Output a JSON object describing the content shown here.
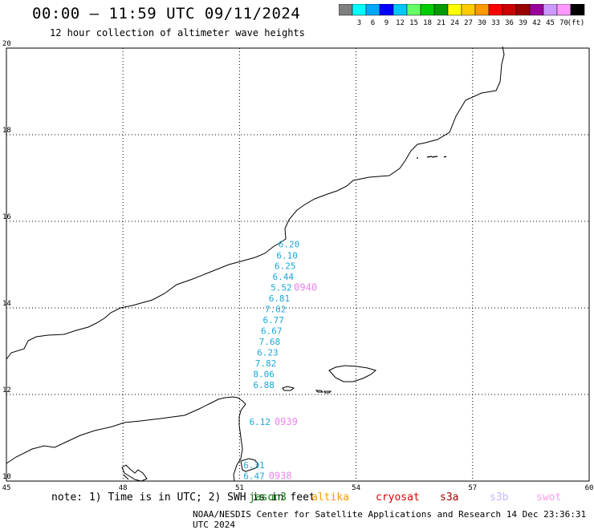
{
  "header": {
    "title": "00:00 – 11:59 UTC 09/11/2024",
    "subtitle": "12 hour collection of altimeter wave heights"
  },
  "colorbar": {
    "colors": [
      "#7f7f7f",
      "#00ffff",
      "#00a8ff",
      "#0000ff",
      "#00c8ff",
      "#66ff66",
      "#00cc00",
      "#009900",
      "#ffff00",
      "#ffcc00",
      "#ff9900",
      "#ff0000",
      "#cc0000",
      "#990000",
      "#990099",
      "#cc99ff",
      "#ff99ff",
      "#000000"
    ],
    "labels": [
      "3",
      "6",
      "9",
      "12",
      "15",
      "18",
      "21",
      "24",
      "27",
      "30",
      "33",
      "36",
      "39",
      "42",
      "45",
      "70"
    ],
    "unit": "(ft)"
  },
  "map": {
    "lon_ticks": [
      "45",
      "48",
      "51",
      "54",
      "57",
      "60"
    ],
    "lat_ticks": [
      "10",
      "12",
      "14",
      "16",
      "18",
      "20"
    ],
    "swh_color": "#1aa7d8",
    "time_color": "#ee82ee",
    "swh_labels": [
      {
        "text": "6.20",
        "lon": 52.0,
        "lat": 15.4
      },
      {
        "text": "6.10",
        "lon": 51.95,
        "lat": 15.14
      },
      {
        "text": "6.25",
        "lon": 51.9,
        "lat": 14.9
      },
      {
        "text": "6.44",
        "lon": 51.85,
        "lat": 14.65
      },
      {
        "text": "5.52",
        "lon": 51.8,
        "lat": 14.4
      },
      {
        "text": "6.81",
        "lon": 51.75,
        "lat": 14.15
      },
      {
        "text": "7.62",
        "lon": 51.65,
        "lat": 13.9
      },
      {
        "text": "6.77",
        "lon": 51.6,
        "lat": 13.65
      },
      {
        "text": "6.67",
        "lon": 51.55,
        "lat": 13.4
      },
      {
        "text": "7.68",
        "lon": 51.5,
        "lat": 13.15
      },
      {
        "text": "6.23",
        "lon": 51.45,
        "lat": 12.9
      },
      {
        "text": "7.82",
        "lon": 51.4,
        "lat": 12.65
      },
      {
        "text": "8.06",
        "lon": 51.35,
        "lat": 12.4
      },
      {
        "text": "6.88",
        "lon": 51.35,
        "lat": 12.15
      },
      {
        "text": "6.12",
        "lon": 51.25,
        "lat": 11.3
      },
      {
        "text": "6.31",
        "lon": 51.1,
        "lat": 10.3
      },
      {
        "text": "6.47",
        "lon": 51.1,
        "lat": 10.05
      }
    ],
    "time_labels": [
      {
        "text": "0940",
        "lon": 52.4,
        "lat": 14.4
      },
      {
        "text": "0939",
        "lon": 51.9,
        "lat": 11.3
      },
      {
        "text": "0938",
        "lon": 51.75,
        "lat": 10.05
      }
    ]
  },
  "footer": {
    "note": "note: 1) Time is in UTC; 2) SWH is in feet",
    "credit": "NOAA/NESDIS Center for Satellite Applications and Research   14 Dec 23:36:31 UTC 2024",
    "satellites": [
      {
        "name": "jason3",
        "color": "#0a7a0a"
      },
      {
        "name": "altika",
        "color": "#ff9900"
      },
      {
        "name": "cryosat",
        "color": "#e00000"
      },
      {
        "name": "s3a",
        "color": "#a00000"
      },
      {
        "name": "s3b",
        "color": "#c8b4ff"
      },
      {
        "name": "swot",
        "color": "#ff99ee"
      }
    ]
  }
}
